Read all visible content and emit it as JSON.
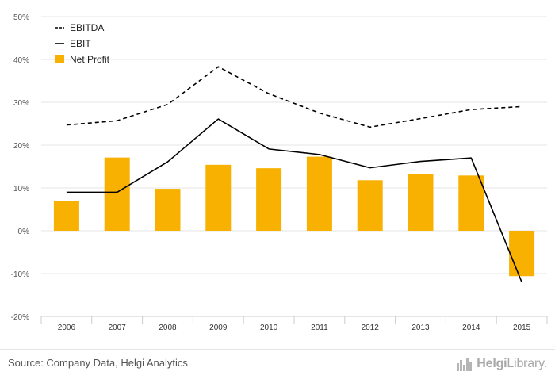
{
  "chart_data": {
    "type": "bar",
    "categories": [
      "2006",
      "2007",
      "2008",
      "2009",
      "2010",
      "2011",
      "2012",
      "2013",
      "2014",
      "2015"
    ],
    "series": [
      {
        "name": "EBITDA",
        "type": "line",
        "style": "dashed",
        "color": "#000000",
        "values": [
          24.7,
          25.7,
          29.5,
          38.3,
          32.0,
          27.5,
          24.2,
          26.2,
          28.3,
          29.0
        ]
      },
      {
        "name": "EBIT",
        "type": "line",
        "style": "solid",
        "color": "#000000",
        "values": [
          9.0,
          9.0,
          16.1,
          26.1,
          19.1,
          17.8,
          14.7,
          16.2,
          17.0,
          -12.0
        ]
      },
      {
        "name": "Net Profit",
        "type": "bar",
        "color": "#F8B100",
        "values": [
          7.0,
          17.1,
          9.8,
          15.4,
          14.6,
          17.3,
          11.8,
          13.2,
          12.9,
          -10.6
        ]
      }
    ],
    "ylim": [
      -20,
      50
    ],
    "yticks": [
      "50%",
      "40%",
      "30%",
      "20%",
      "10%",
      "0%",
      "-10%",
      "-20%"
    ],
    "ytick_values": [
      50,
      40,
      30,
      20,
      10,
      0,
      -10,
      -20
    ],
    "legend_position": "top-left",
    "grid": true
  },
  "footer": {
    "source": "Source: Company Data, Helgi Analytics",
    "logo_bold": "Helgi",
    "logo_rest": "Library."
  }
}
